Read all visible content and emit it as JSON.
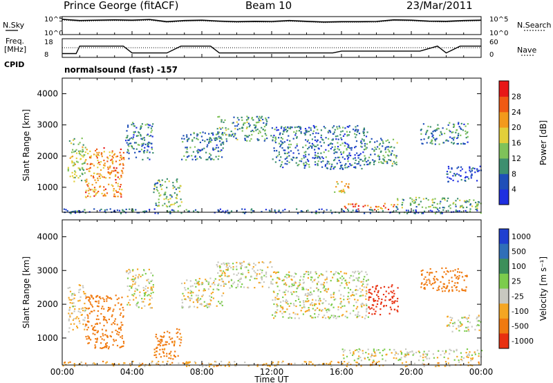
{
  "header": {
    "station": "Prince George (fitACF)",
    "beam": "Beam 10",
    "date": "23/Mar/2011"
  },
  "panel_labels": {
    "nsky": "N.Sky",
    "nsearch": "N.Search",
    "freq_line1": "Freq.",
    "freq_line2": "[MHz]",
    "nave": "Nave",
    "cpid": "CPID",
    "cpid_value": "normalsound (fast) -157"
  },
  "noise_axis": {
    "left_ticks": [
      "10^5",
      "10^0"
    ],
    "right_ticks": [
      "10^5",
      "10^0"
    ]
  },
  "freq_axis": {
    "left_ticks": [
      "18",
      "8"
    ],
    "right_ticks": [
      "60",
      "0"
    ]
  },
  "chart_data": [
    {
      "type": "heatmap",
      "title": "",
      "xlabel": "Time UT",
      "ylabel": "Slant Range [km]",
      "x_ticks": [
        "00:00",
        "04:00",
        "08:00",
        "12:00",
        "16:00",
        "20:00",
        "00:00"
      ],
      "y_ticks": [
        1000,
        2000,
        3000,
        4000
      ],
      "ylim": [
        200,
        4500
      ],
      "xlim_hours": [
        0,
        24
      ],
      "colorbar": {
        "label": "Power [dB]",
        "ticks": [
          4,
          8,
          12,
          16,
          20,
          24,
          28
        ],
        "colors": [
          "#1f2fe0",
          "#1f4fb8",
          "#3d8f6f",
          "#7fc25a",
          "#e3cf3a",
          "#f39a1c",
          "#f05a14",
          "#e81818"
        ]
      },
      "regions": [
        {
          "t": [
            0.3,
            1.3
          ],
          "r": [
            1200,
            2600
          ],
          "v": 16
        },
        {
          "t": [
            1.3,
            3.5
          ],
          "r": [
            700,
            2300
          ],
          "v": 24
        },
        {
          "t": [
            3.6,
            5.2
          ],
          "r": [
            1900,
            3100
          ],
          "v": 10
        },
        {
          "t": [
            5.2,
            6.8
          ],
          "r": [
            400,
            1300
          ],
          "v": 14
        },
        {
          "t": [
            6.8,
            9.2
          ],
          "r": [
            1900,
            2800
          ],
          "v": 10
        },
        {
          "t": [
            8.8,
            12.0
          ],
          "r": [
            2500,
            3300
          ],
          "v": 12
        },
        {
          "t": [
            12.0,
            17.5
          ],
          "r": [
            1600,
            3000
          ],
          "v": 9
        },
        {
          "t": [
            15.5,
            16.4
          ],
          "r": [
            800,
            1200
          ],
          "v": 20
        },
        {
          "t": [
            16.0,
            19.0
          ],
          "r": [
            300,
            500
          ],
          "v": 26
        },
        {
          "t": [
            17.5,
            19.2
          ],
          "r": [
            1700,
            2600
          ],
          "v": 12
        },
        {
          "t": [
            20.5,
            23.2
          ],
          "r": [
            2400,
            3100
          ],
          "v": 10
        },
        {
          "t": [
            22.0,
            24.0
          ],
          "r": [
            1200,
            1700
          ],
          "v": 6
        },
        {
          "t": [
            19.0,
            24.0
          ],
          "r": [
            350,
            700
          ],
          "v": 14
        },
        {
          "t": [
            0.0,
            24.0
          ],
          "r": [
            180,
            330
          ],
          "v": 8
        }
      ]
    },
    {
      "type": "heatmap",
      "title": "",
      "xlabel": "Time UT",
      "ylabel": "Slant Range [km]",
      "x_ticks": [
        "00:00",
        "04:00",
        "08:00",
        "12:00",
        "16:00",
        "20:00",
        "00:00"
      ],
      "y_ticks": [
        1000,
        2000,
        3000,
        4000
      ],
      "ylim": [
        200,
        4500
      ],
      "xlim_hours": [
        0,
        24
      ],
      "colorbar": {
        "label": "Velocity [m s^-1]",
        "ticks": [
          "1000",
          "500",
          "100",
          "25",
          "-25",
          "-100",
          "-500",
          "-1000"
        ],
        "colors": [
          "#1f3fd0",
          "#2f6fb8",
          "#3c8f5a",
          "#7ccc4c",
          "#c8c8c0",
          "#f5a623",
          "#f07a10",
          "#e83010"
        ]
      },
      "regions": [
        {
          "t": [
            0.3,
            1.3
          ],
          "r": [
            1200,
            2600
          ],
          "v": -30
        },
        {
          "t": [
            1.3,
            3.5
          ],
          "r": [
            700,
            2300
          ],
          "v": -400
        },
        {
          "t": [
            3.6,
            5.2
          ],
          "r": [
            1900,
            3100
          ],
          "v": 0
        },
        {
          "t": [
            5.2,
            6.8
          ],
          "r": [
            400,
            1300
          ],
          "v": -150
        },
        {
          "t": [
            6.8,
            9.2
          ],
          "r": [
            1900,
            2800
          ],
          "v": 0
        },
        {
          "t": [
            8.8,
            12.0
          ],
          "r": [
            2500,
            3300
          ],
          "v": 0
        },
        {
          "t": [
            12.0,
            17.5
          ],
          "r": [
            1600,
            3000
          ],
          "v": 0
        },
        {
          "t": [
            17.5,
            19.2
          ],
          "r": [
            1700,
            2600
          ],
          "v": -600
        },
        {
          "t": [
            20.5,
            23.2
          ],
          "r": [
            2400,
            3100
          ],
          "v": -300
        },
        {
          "t": [
            22.0,
            24.0
          ],
          "r": [
            1200,
            1700
          ],
          "v": 0
        },
        {
          "t": [
            16.0,
            24.0
          ],
          "r": [
            350,
            700
          ],
          "v": 0
        },
        {
          "t": [
            0.0,
            24.0
          ],
          "r": [
            180,
            330
          ],
          "v": -60
        }
      ]
    }
  ],
  "noise_trace": {
    "search_hours": [
      0,
      1,
      2,
      3,
      4,
      5,
      6,
      7,
      8,
      9,
      10,
      11,
      12,
      13,
      14,
      15,
      16,
      17,
      18,
      19,
      20,
      21,
      22,
      23,
      24
    ],
    "search_level": [
      0.85,
      0.78,
      0.8,
      0.82,
      0.8,
      0.84,
      0.72,
      0.78,
      0.8,
      0.75,
      0.72,
      0.74,
      0.73,
      0.78,
      0.74,
      0.7,
      0.72,
      0.72,
      0.73,
      0.82,
      0.8,
      0.75,
      0.74,
      0.78,
      0.8
    ]
  },
  "freq_trace": {
    "hours": [
      0,
      0.8,
      1.0,
      3.5,
      4.0,
      6.0,
      6.8,
      8.5,
      9.0,
      15.5,
      16.0,
      20.5,
      21.5,
      22.0,
      22.8,
      24
    ],
    "mhz": [
      10.5,
      10.5,
      16.5,
      16.5,
      11.0,
      11.0,
      16.5,
      16.5,
      11.0,
      11.0,
      12.5,
      12.5,
      16.5,
      11.0,
      16.5,
      16.5
    ]
  }
}
